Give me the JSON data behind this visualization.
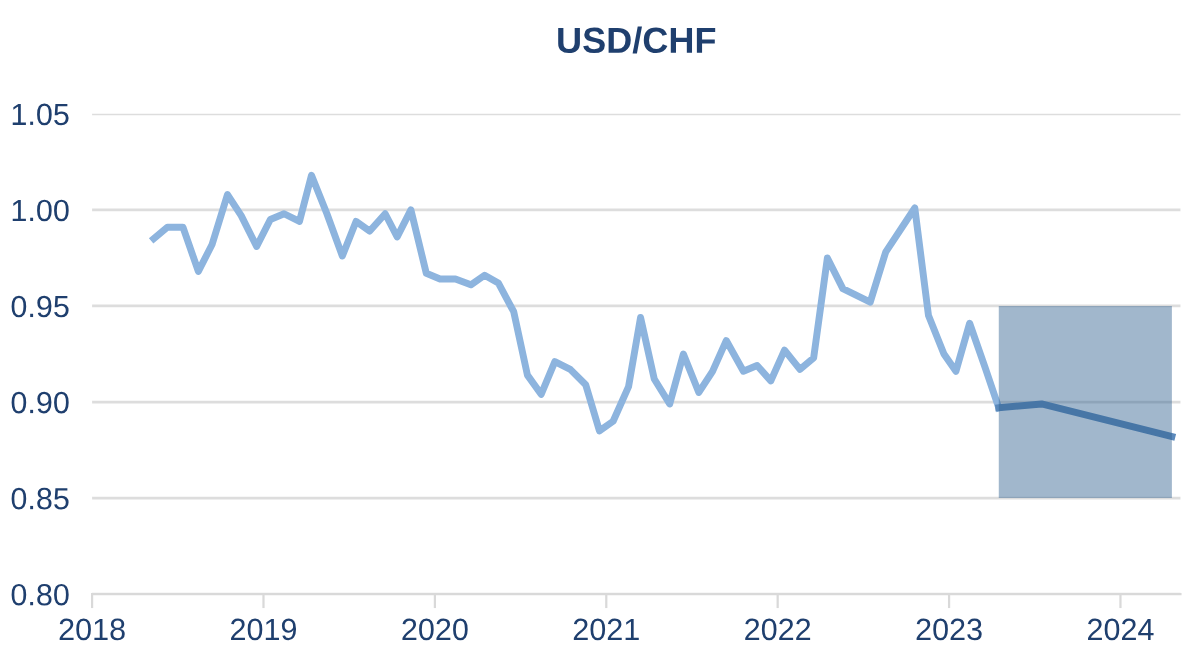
{
  "chart_data": {
    "type": "line",
    "title": "USD/CHF",
    "series": [
      {
        "color": "#8db4de",
        "x": [
          2018.36,
          2018.44,
          2018.53,
          2018.62,
          2018.7,
          2018.79,
          2018.87,
          2018.96,
          2019.04,
          2019.12,
          2019.21,
          2019.28,
          2019.37,
          2019.46,
          2019.54,
          2019.62,
          2019.71,
          2019.78,
          2019.86,
          2019.95,
          2020.03,
          2020.12,
          2020.21,
          2020.29,
          2020.37,
          2020.46,
          2020.54,
          2020.62,
          2020.7,
          2020.79,
          2020.88,
          2020.96,
          2021.04,
          2021.13,
          2021.2,
          2021.28,
          2021.37,
          2021.45,
          2021.54,
          2021.62,
          2021.7,
          2021.8,
          2021.88,
          2021.96,
          2022.04,
          2022.13,
          2022.21,
          2022.29,
          2022.38,
          2022.54,
          2022.63,
          2022.8,
          2022.88,
          2022.97,
          2023.04,
          2023.12,
          2023.21,
          2023.29
        ],
        "values": [
          0.985,
          0.991,
          0.991,
          0.968,
          0.982,
          1.008,
          0.997,
          0.981,
          0.995,
          0.998,
          0.994,
          1.018,
          0.998,
          0.976,
          0.994,
          0.989,
          0.998,
          0.986,
          1.0,
          0.967,
          0.964,
          0.964,
          0.961,
          0.966,
          0.962,
          0.947,
          0.914,
          0.904,
          0.921,
          0.917,
          0.909,
          0.885,
          0.89,
          0.908,
          0.944,
          0.912,
          0.899,
          0.925,
          0.905,
          0.916,
          0.932,
          0.916,
          0.919,
          0.911,
          0.927,
          0.917,
          0.923,
          0.975,
          0.959,
          0.952,
          0.978,
          1.001,
          0.945,
          0.925,
          0.916,
          0.941,
          0.918,
          0.897
        ]
      },
      {
        "color": "#5b89bb",
        "x": [
          2023.29,
          2023.54,
          2024.3
        ],
        "values": [
          0.897,
          0.899,
          0.882
        ],
        "lower": [
          0.85,
          0.85,
          0.85
        ],
        "upper": [
          0.95,
          0.95,
          0.95
        ]
      }
    ],
    "xlim": [
      2018,
      2024.35
    ],
    "ylim": [
      0.8,
      1.05
    ],
    "xticks": [
      2018,
      2019,
      2020,
      2021,
      2022,
      2023,
      2024
    ],
    "yticks": [
      {
        "value": 0.8,
        "label": "0.80"
      },
      {
        "value": 0.85,
        "label": "0.85"
      },
      {
        "value": 0.9,
        "label": "0.90"
      },
      {
        "value": 0.95,
        "label": "0.95"
      },
      {
        "value": 1.0,
        "label": "1.00"
      },
      {
        "value": 1.05,
        "label": "1.05"
      }
    ],
    "grid": "y",
    "marker": "none",
    "line_style": "solid"
  }
}
